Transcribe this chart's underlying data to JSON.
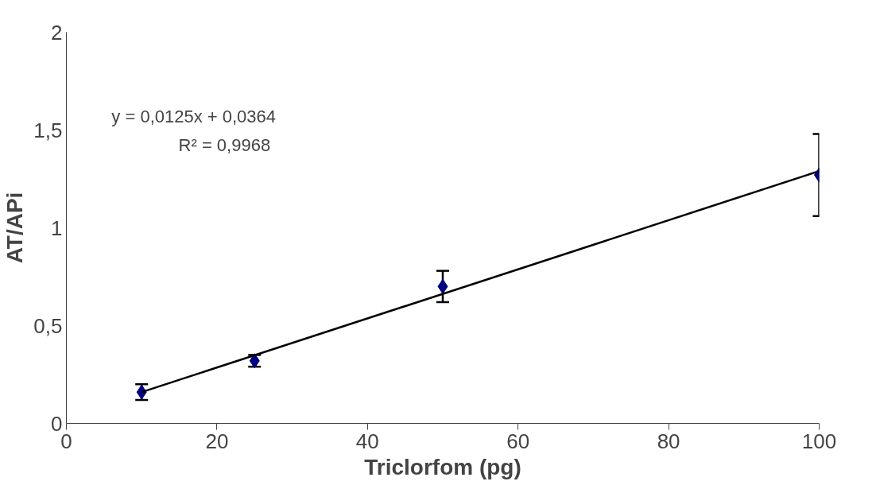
{
  "chart_data": {
    "type": "scatter",
    "xlabel": "Triclorfom (pg)",
    "ylabel": "AT/APi",
    "xlim": [
      0,
      100
    ],
    "xticks": [
      0,
      20,
      40,
      60,
      80,
      100
    ],
    "ylim": [
      0,
      2
    ],
    "yticks": [
      0,
      {
        "value": 0.5,
        "label": "0,5"
      },
      1,
      {
        "value": 1.5,
        "label": "1,5"
      },
      2
    ],
    "grid": false,
    "series": [
      {
        "color": "#000080",
        "marker": "diamond",
        "x": [
          10,
          25,
          50,
          100
        ],
        "values": [
          0.16,
          0.32,
          0.7,
          1.27
        ],
        "errors": [
          0.04,
          0.03,
          0.08,
          0.21
        ]
      },
      {
        "type": "line",
        "color": "#000000",
        "x": [
          10,
          100
        ],
        "values": [
          0.16,
          1.29
        ],
        "line_style": "solid"
      }
    ],
    "annotations": [
      "y = 0,0125x + 0,0364",
      "R² = 0,9968"
    ]
  }
}
